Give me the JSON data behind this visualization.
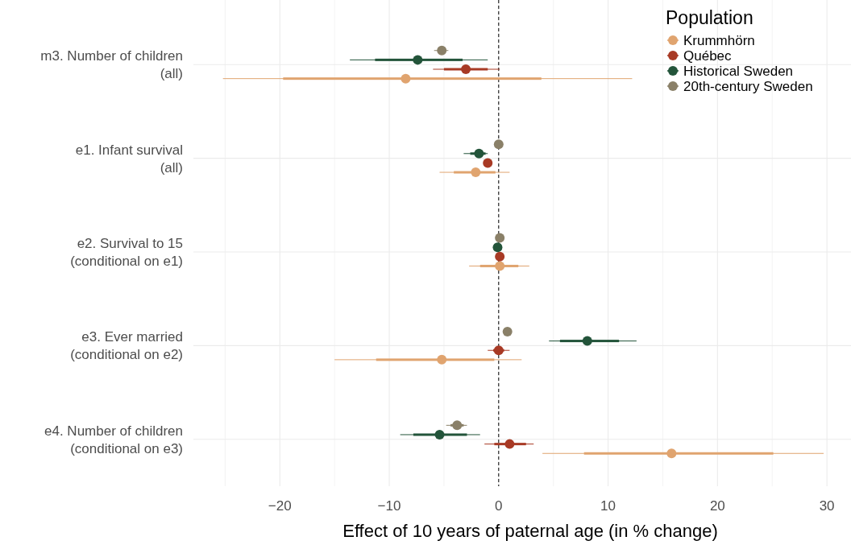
{
  "chart_data": {
    "type": "scatter",
    "orientation": "horizontal",
    "xlabel": "Effect of 10 years of paternal age (in % change)",
    "legend_title": "Population",
    "legend": "top right",
    "grid": true,
    "marker": "circle",
    "categories": [
      "m3. Number of children\n(all)",
      "e1. Infant survival\n(all)",
      "e2. Survival to 15\n(conditional on e1)",
      "e3. Ever married\n(conditional on e2)",
      "e4. Number of children\n(conditional on e3)"
    ],
    "xlim": [
      -27.9,
      32.2
    ],
    "xticks": [
      {
        "value": -25,
        "label": null
      },
      {
        "value": -20,
        "label": "−20"
      },
      {
        "value": -15,
        "label": null
      },
      {
        "value": -10,
        "label": "−10"
      },
      {
        "value": -5,
        "label": null
      },
      0,
      {
        "value": 5,
        "label": null
      },
      10,
      {
        "value": 15,
        "label": null
      },
      20,
      {
        "value": 25,
        "label": null
      },
      30
    ],
    "ref_lines": [
      {
        "axis": "x",
        "value": 0,
        "color": "#000000",
        "line_style": "dashed"
      }
    ],
    "series": [
      {
        "name": "Krummhörn",
        "color": "#e0a46f",
        "values": [
          -8.5,
          -2.1,
          0.1,
          -5.2,
          15.8
        ],
        "errors": [
          [
            -25.2,
            12.2
          ],
          [
            -5.4,
            1.0
          ],
          [
            -2.7,
            2.8
          ],
          [
            -15.0,
            2.1
          ],
          [
            4.0,
            29.7
          ]
        ]
      },
      {
        "name": "Québec",
        "color": "#a83a25",
        "values": [
          -3.0,
          -1.0,
          0.1,
          0.0,
          1.0
        ],
        "errors": [
          [
            -6.0,
            0.1
          ],
          [
            -1.3,
            -0.7
          ],
          [
            -0.2,
            0.4
          ],
          [
            -1.0,
            1.0
          ],
          [
            -1.3,
            3.2
          ]
        ]
      },
      {
        "name": "Historical Sweden",
        "color": "#23543a",
        "values": [
          -7.4,
          -1.8,
          -0.1,
          8.1,
          -5.4
        ],
        "errors": [
          [
            -13.6,
            -1.0
          ],
          [
            -3.2,
            -1.0
          ],
          [
            -0.5,
            0.2
          ],
          [
            4.6,
            12.6
          ],
          [
            -9.0,
            -1.7
          ]
        ]
      },
      {
        "name": "20th-century Sweden",
        "color": "#8a8068",
        "values": [
          -5.2,
          0.0,
          0.1,
          0.8,
          -3.8
        ],
        "errors": [
          [
            -5.9,
            -4.6
          ],
          [
            -0.2,
            0.2
          ],
          [
            -0.1,
            0.3
          ],
          [
            0.6,
            1.1
          ],
          [
            -4.8,
            -2.9
          ]
        ]
      },
      {
        "type": "bar",
        "color": "#e0a46f",
        "base": [
          -19.7,
          -4.1,
          -1.7,
          -11.2,
          7.8
        ],
        "values": [
          23.6,
          3.8,
          3.5,
          10.8,
          17.3
        ]
      },
      {
        "type": "bar",
        "color": "#a83a25",
        "base": [
          -5.0,
          null,
          null,
          -0.5,
          -0.4
        ],
        "values": [
          4.0,
          null,
          null,
          1.0,
          2.9
        ]
      },
      {
        "type": "bar",
        "color": "#23543a",
        "base": [
          -11.3,
          -2.6,
          null,
          5.6,
          -7.8
        ],
        "values": [
          8.0,
          1.4,
          null,
          5.4,
          4.9
        ]
      },
      {
        "type": "bar",
        "color": "#8a8068",
        "base": [
          null,
          null,
          null,
          null,
          -4.4
        ],
        "values": [
          null,
          null,
          null,
          null,
          1.2
        ]
      }
    ]
  }
}
